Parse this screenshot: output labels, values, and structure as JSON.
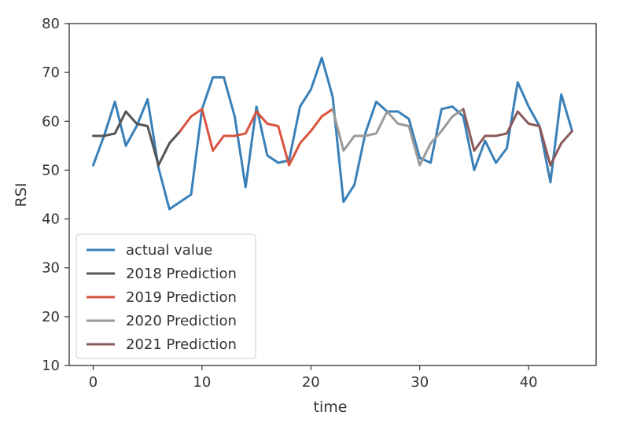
{
  "chart_data": {
    "type": "line",
    "title": "",
    "xlabel": "time",
    "ylabel": "RSI",
    "xlim": [
      -2.2,
      46.2
    ],
    "ylim": [
      10,
      80
    ],
    "xticks": [
      "0",
      "10",
      "20",
      "30",
      "40"
    ],
    "xtick_values": [
      0,
      10,
      20,
      30,
      40
    ],
    "yticks": [
      "10",
      "20",
      "30",
      "40",
      "50",
      "60",
      "70",
      "80"
    ],
    "ytick_values": [
      10,
      20,
      30,
      40,
      50,
      60,
      70,
      80
    ],
    "grid": false,
    "legend_position": "lower-left",
    "series": [
      {
        "name": "actual value",
        "color": "#3a80b8",
        "x": [
          0,
          1,
          2,
          3,
          4,
          5,
          6,
          7,
          8,
          9,
          10,
          11,
          12,
          13,
          14,
          15,
          16,
          17,
          18,
          19,
          20,
          21,
          22,
          23,
          24,
          25,
          26,
          27,
          28,
          29,
          30,
          31,
          32,
          33,
          34,
          35,
          36,
          37,
          38,
          39,
          40,
          41,
          42,
          43,
          44
        ],
        "y": [
          51,
          57,
          64,
          55,
          59,
          64.5,
          50.5,
          42,
          43.5,
          45,
          62.5,
          69,
          69,
          61,
          46.5,
          63,
          53,
          51.5,
          52,
          63,
          66.5,
          73,
          65,
          43.5,
          47,
          57.5,
          64,
          62,
          62,
          60.5,
          52.5,
          51.5,
          62.5,
          63,
          61,
          50,
          56,
          51.5,
          54.5,
          68,
          63,
          59,
          47.5,
          65.5,
          58
        ]
      },
      {
        "name": "2018 Prediction",
        "color": "#555555",
        "x": [
          0,
          1,
          2,
          3,
          4,
          5,
          6,
          7,
          8
        ],
        "y": [
          57,
          57,
          57.5,
          62,
          59.5,
          59,
          51,
          55.5,
          58
        ]
      },
      {
        "name": "2019 Prediction",
        "color": "#d9533f",
        "x": [
          8,
          9,
          10,
          11,
          12,
          13,
          14,
          15,
          16,
          17,
          18,
          19,
          20,
          21,
          22
        ],
        "y": [
          58,
          61,
          62.5,
          54,
          57,
          57,
          57.5,
          62,
          59.5,
          59,
          51,
          55.5,
          58,
          61,
          62.5
        ]
      },
      {
        "name": "2020 Prediction",
        "color": "#9a9a9a",
        "x": [
          22,
          23,
          24,
          25,
          26,
          27,
          28,
          29,
          30,
          31,
          32,
          33,
          34
        ],
        "y": [
          62.5,
          54,
          57,
          57,
          57.5,
          62,
          59.5,
          59,
          51,
          55.5,
          58,
          61,
          62.5
        ]
      },
      {
        "name": "2021 Prediction",
        "color": "#8c5a5a",
        "x": [
          34,
          35,
          36,
          37,
          38,
          39,
          40,
          41,
          42,
          43,
          44
        ],
        "y": [
          62.5,
          54,
          57,
          57,
          57.5,
          62,
          59.5,
          59,
          51,
          55.5,
          58
        ]
      }
    ]
  }
}
